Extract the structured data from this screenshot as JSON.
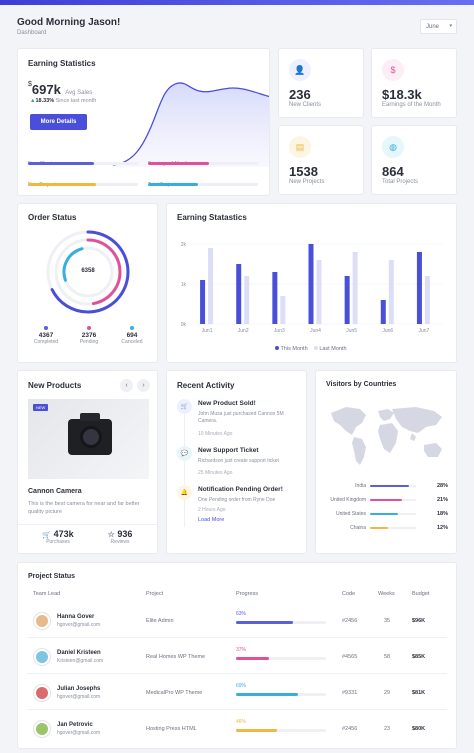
{
  "header": {
    "greeting": "Good Morning Jason!",
    "breadcrumb": "Dashboard",
    "month_select": "June"
  },
  "earning_stats": {
    "title": "Earning Statistics",
    "currency": "$",
    "value": "697k",
    "value_label": "Avg Sales",
    "change": "18.33%",
    "change_label": "Since last month",
    "button": "More Details",
    "metrics": [
      {
        "label": "New Clients",
        "color": "#5b5fd9",
        "fill": 0.6
      },
      {
        "label": "Earnings of Month",
        "color": "#e0509b",
        "fill": 0.55
      },
      {
        "label": "New Projects",
        "color": "#f0b840",
        "fill": 0.62
      },
      {
        "label": "Total Projects",
        "color": "#38aee0",
        "fill": 0.45
      }
    ]
  },
  "stats": [
    {
      "value": "236",
      "label": "New Clients",
      "icon": "user-plus-icon",
      "glyph": "👤",
      "bg": "#eef0fd",
      "color": "#5b5fd9"
    },
    {
      "value": "$18.3k",
      "label": "Earnings of the Month",
      "icon": "dollar-icon",
      "glyph": "$",
      "bg": "#fdeef6",
      "color": "#e0509b"
    },
    {
      "value": "1538",
      "label": "New Projects",
      "icon": "file-icon",
      "glyph": "▤",
      "bg": "#fdf5e4",
      "color": "#f0b840"
    },
    {
      "value": "864",
      "label": "Total Projects",
      "icon": "globe-icon",
      "glyph": "◍",
      "bg": "#e6f6fb",
      "color": "#38aee0"
    }
  ],
  "order_status": {
    "title": "Order Status",
    "center": "6358",
    "items": [
      {
        "value": "4367",
        "label": "Completed",
        "color": "#5b5fd9"
      },
      {
        "value": "2376",
        "label": "Pending",
        "color": "#e0509b"
      },
      {
        "value": "694",
        "label": "Canceled",
        "color": "#38aee0"
      }
    ]
  },
  "earning_chart": {
    "title": "Earning Statastics",
    "legend": [
      "This Month",
      "Last Month"
    ]
  },
  "chart_data": {
    "type": "bar",
    "categories": [
      "Jun1",
      "Jun2",
      "Jun3",
      "Jun4",
      "Jun5",
      "Jun6",
      "Jun7"
    ],
    "ylim": [
      0,
      2000
    ],
    "yticks": [
      "0k",
      "1k",
      "2k"
    ],
    "series": [
      {
        "name": "This Month",
        "color": "#4a4fd9",
        "values": [
          1100,
          1500,
          1300,
          2000,
          1200,
          600,
          1800
        ]
      },
      {
        "name": "Last Month",
        "color": "#dcdef8",
        "values": [
          1900,
          1200,
          700,
          1600,
          1800,
          1600,
          1200
        ]
      }
    ]
  },
  "new_products": {
    "title": "New Products",
    "tag": "NEW",
    "name": "Cannon Camera",
    "description": "This is the best camera for near and far better quality picture",
    "purchases": "473k",
    "purchases_label": "Purchases",
    "reviews": "936",
    "reviews_label": "Reviews"
  },
  "recent_activity": {
    "title": "Recent Activity",
    "items": [
      {
        "title": "New Product Sold!",
        "text": "John Musa just purchased Cannon 5M Camera.",
        "time": "10 Minutes Ago",
        "color": "#5b5fd9",
        "bg": "#eef0fd",
        "glyph": "🛒"
      },
      {
        "title": "New Support Ticket",
        "text": "Richardson just create support ticket",
        "time": "25 Minutes Ago",
        "color": "#38aee0",
        "bg": "#e6f6fb",
        "glyph": "💬"
      },
      {
        "title": "Notification Pending Order!",
        "text": "One Pending order from Ryne Doe",
        "time": "2 Hours Ago",
        "color": "#f0b840",
        "bg": "#fdf5e4",
        "glyph": "🔔"
      }
    ],
    "load_more": "Load More"
  },
  "visitors": {
    "title": "Visitors by Countries",
    "countries": [
      {
        "name": "India",
        "pct": "28%",
        "fill": 0.85,
        "color": "#5b5fd9"
      },
      {
        "name": "United Kingdom",
        "pct": "21%",
        "fill": 0.7,
        "color": "#e0509b"
      },
      {
        "name": "United States",
        "pct": "18%",
        "fill": 0.6,
        "color": "#38aee0"
      },
      {
        "name": "Chaina",
        "pct": "12%",
        "fill": 0.4,
        "color": "#f0b840"
      }
    ]
  },
  "project_status": {
    "title": "Project Status",
    "headers": [
      "Team Lead",
      "Project",
      "Progress",
      "Code",
      "Weeks",
      "Budget"
    ],
    "rows": [
      {
        "name": "Hanna Gover",
        "email": "hgover@gmail.com",
        "project": "Elite Admin",
        "progress": "63%",
        "fill": 0.63,
        "color": "#5b5fd9",
        "code": "#2456",
        "weeks": "35",
        "budget": "$96K",
        "avatar": "#e8b98a"
      },
      {
        "name": "Daniel Kristeen",
        "email": "Kristeen@gmail.com",
        "project": "Real Homes WP Theme",
        "progress": "37%",
        "fill": 0.37,
        "color": "#e0509b",
        "code": "#4565",
        "weeks": "58",
        "budget": "$85K",
        "avatar": "#7fc4e0"
      },
      {
        "name": "Julian Josephs",
        "email": "hgover@gmail.com",
        "project": "MedicalPro WP Theme",
        "progress": "69%",
        "fill": 0.69,
        "color": "#38aee0",
        "code": "#9331",
        "weeks": "29",
        "budget": "$81K",
        "avatar": "#d96b6b"
      },
      {
        "name": "Jan Petrovic",
        "email": "hgover@gmail.com",
        "project": "Hosting Press HTML",
        "progress": "46%",
        "fill": 0.46,
        "color": "#f0b840",
        "code": "#2456",
        "weeks": "23",
        "budget": "$80K",
        "avatar": "#9cc46a"
      }
    ]
  }
}
